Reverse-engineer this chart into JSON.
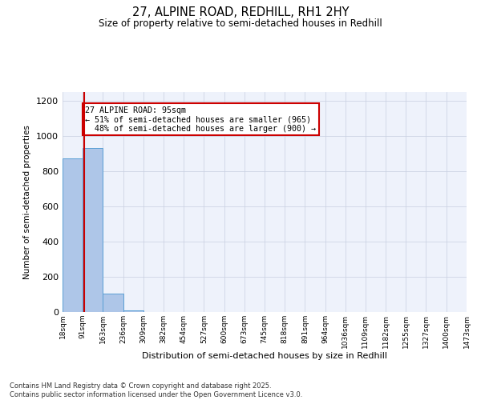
{
  "title_line1": "27, ALPINE ROAD, REDHILL, RH1 2HY",
  "title_line2": "Size of property relative to semi-detached houses in Redhill",
  "xlabel": "Distribution of semi-detached houses by size in Redhill",
  "ylabel": "Number of semi-detached properties",
  "property_size": 95,
  "property_label": "27 ALPINE ROAD: 95sqm",
  "pct_smaller": 51,
  "pct_larger": 48,
  "n_smaller": 965,
  "n_larger": 900,
  "bin_edges": [
    18,
    91,
    163,
    236,
    309,
    382,
    454,
    527,
    600,
    673,
    745,
    818,
    891,
    964,
    1036,
    1109,
    1182,
    1255,
    1327,
    1400,
    1473
  ],
  "bin_counts": [
    875,
    930,
    105,
    10,
    2,
    1,
    1,
    0,
    1,
    0,
    1,
    0,
    0,
    0,
    0,
    0,
    0,
    0,
    0,
    0
  ],
  "bar_color": "#aec6e8",
  "bar_edge_color": "#5a9fd4",
  "red_line_color": "#cc0000",
  "annotation_box_color": "#cc0000",
  "background_color": "#eef2fb",
  "grid_color": "#c8cfe0",
  "ylim": [
    0,
    1250
  ],
  "yticks": [
    0,
    200,
    400,
    600,
    800,
    1000,
    1200
  ],
  "footer_line1": "Contains HM Land Registry data © Crown copyright and database right 2025.",
  "footer_line2": "Contains public sector information licensed under the Open Government Licence v3.0."
}
